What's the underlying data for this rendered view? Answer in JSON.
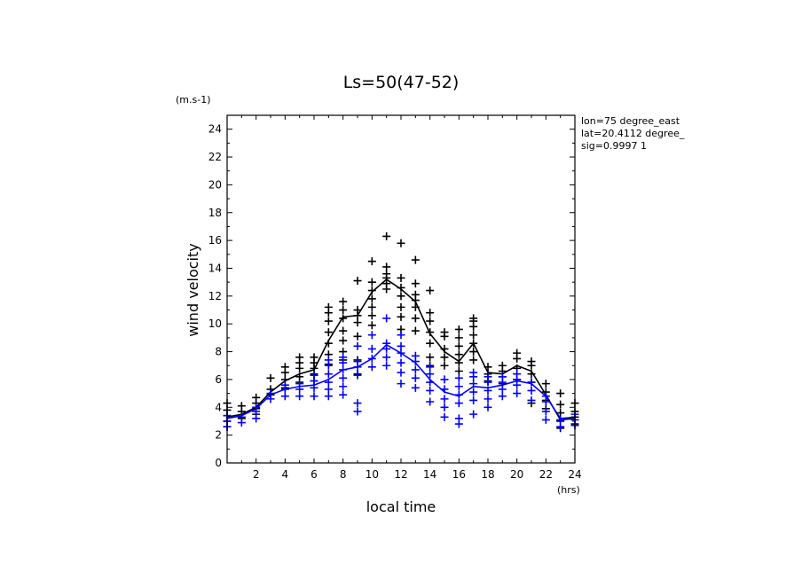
{
  "chart_data": {
    "type": "scatter",
    "title": "Ls=50(47-52)",
    "xlabel": "local time",
    "ylabel": "wind velocity",
    "x_unit": "(hrs)",
    "y_unit": "(m.s-1)",
    "info_lines": [
      "lon=75 degree_east",
      "lat=20.4112 degree_",
      "sig=0.9997 1"
    ],
    "xlim": [
      0,
      24
    ],
    "ylim": [
      0,
      25
    ],
    "x_ticks": [
      2,
      4,
      6,
      8,
      10,
      12,
      14,
      16,
      18,
      20,
      22,
      24
    ],
    "y_ticks": [
      0,
      2,
      4,
      6,
      8,
      10,
      12,
      14,
      16,
      18,
      20,
      22,
      24
    ],
    "colors": {
      "black_series": "#000000",
      "blue_series": "#0000ff"
    },
    "series": [
      {
        "color": "#000000",
        "mean_line": {
          "x": [
            0,
            1,
            2,
            3,
            4,
            5,
            6,
            7,
            8,
            9,
            10,
            11,
            12,
            13,
            14,
            15,
            16,
            17,
            18,
            19,
            20,
            21,
            22,
            23,
            24
          ],
          "y": [
            3.3,
            3.5,
            4.0,
            5.1,
            5.9,
            6.4,
            6.7,
            8.8,
            10.5,
            10.6,
            12.3,
            13.2,
            12.5,
            11.6,
            9.3,
            8.0,
            7.3,
            8.6,
            6.5,
            6.4,
            7.0,
            6.6,
            4.9,
            3.1,
            3.2
          ]
        },
        "points": [
          {
            "x": 0,
            "y": [
              2.6,
              3.0,
              3.4,
              3.8,
              4.3
            ]
          },
          {
            "x": 1,
            "y": [
              3.2,
              3.7,
              4.1
            ]
          },
          {
            "x": 2,
            "y": [
              3.5,
              3.9,
              4.3,
              4.7
            ]
          },
          {
            "x": 3,
            "y": [
              4.9,
              5.3,
              6.1
            ]
          },
          {
            "x": 4,
            "y": [
              5.4,
              6.0,
              6.5,
              6.9
            ]
          },
          {
            "x": 5,
            "y": [
              5.8,
              6.2,
              6.8,
              7.2,
              7.6
            ]
          },
          {
            "x": 6,
            "y": [
              5.9,
              6.4,
              6.8,
              7.2,
              7.6
            ]
          },
          {
            "x": 7,
            "y": [
              7.1,
              7.8,
              8.6,
              9.4,
              10.2,
              10.8,
              11.2
            ]
          },
          {
            "x": 8,
            "y": [
              7.4,
              8.0,
              8.8,
              9.5,
              10.4,
              11.0,
              11.6
            ]
          },
          {
            "x": 9,
            "y": [
              6.4,
              7.4,
              9.1,
              10.1,
              10.6,
              11.0,
              13.1
            ]
          },
          {
            "x": 10,
            "y": [
              9.9,
              10.6,
              11.2,
              11.8,
              12.4,
              13.0,
              14.5
            ]
          },
          {
            "x": 11,
            "y": [
              12.5,
              12.9,
              13.3,
              13.6,
              14.1,
              16.3
            ]
          },
          {
            "x": 12,
            "y": [
              9.6,
              10.5,
              11.2,
              12.0,
              12.6,
              13.3,
              15.8
            ]
          },
          {
            "x": 13,
            "y": [
              9.5,
              10.4,
              11.2,
              11.7,
              12.1,
              12.9,
              14.6
            ]
          },
          {
            "x": 14,
            "y": [
              7.0,
              7.6,
              8.6,
              9.4,
              10.2,
              10.8,
              12.4
            ]
          },
          {
            "x": 15,
            "y": [
              7.0,
              7.6,
              8.2,
              9.1,
              9.4
            ]
          },
          {
            "x": 16,
            "y": [
              6.6,
              7.2,
              7.8,
              8.4,
              9.0,
              9.6
            ]
          },
          {
            "x": 17,
            "y": [
              7.4,
              8.0,
              8.6,
              9.2,
              9.8,
              10.2,
              10.4
            ]
          },
          {
            "x": 18,
            "y": [
              5.9,
              6.4,
              6.9
            ]
          },
          {
            "x": 19,
            "y": [
              5.7,
              6.2,
              6.6,
              7.0
            ]
          },
          {
            "x": 20,
            "y": [
              6.0,
              6.8,
              7.5,
              7.9
            ]
          },
          {
            "x": 21,
            "y": [
              4.3,
              5.8,
              6.4,
              7.0,
              7.3
            ]
          },
          {
            "x": 22,
            "y": [
              3.9,
              4.5,
              5.1,
              5.7
            ]
          },
          {
            "x": 23,
            "y": [
              2.5,
              3.0,
              3.6,
              4.2,
              5.0
            ]
          },
          {
            "x": 24,
            "y": [
              2.8,
              3.3,
              3.7,
              4.3
            ]
          }
        ]
      },
      {
        "color": "#0000ff",
        "mean_line": {
          "x": [
            0,
            1,
            2,
            3,
            4,
            5,
            6,
            7,
            8,
            9,
            10,
            11,
            12,
            13,
            14,
            15,
            16,
            17,
            18,
            19,
            20,
            21,
            22,
            23,
            24
          ],
          "y": [
            3.2,
            3.4,
            3.9,
            4.9,
            5.3,
            5.5,
            5.6,
            6.0,
            6.7,
            6.9,
            7.5,
            8.5,
            7.9,
            7.2,
            6.0,
            5.1,
            4.8,
            5.5,
            5.4,
            5.6,
            5.9,
            5.7,
            4.8,
            3.2,
            3.3
          ]
        },
        "points": [
          {
            "x": 0,
            "y": [
              2.6,
              3.0,
              3.4
            ]
          },
          {
            "x": 1,
            "y": [
              2.9,
              3.3
            ]
          },
          {
            "x": 2,
            "y": [
              3.2,
              3.7,
              4.0
            ]
          },
          {
            "x": 3,
            "y": [
              4.6,
              5.0
            ]
          },
          {
            "x": 4,
            "y": [
              4.8,
              5.3,
              5.6
            ]
          },
          {
            "x": 5,
            "y": [
              4.8,
              5.3,
              5.7
            ]
          },
          {
            "x": 6,
            "y": [
              4.8,
              5.4,
              5.9,
              6.3
            ]
          },
          {
            "x": 7,
            "y": [
              4.8,
              5.3,
              5.8,
              6.4,
              7.0,
              7.4
            ]
          },
          {
            "x": 8,
            "y": [
              4.9,
              5.5,
              6.1,
              6.7,
              7.2,
              7.6
            ]
          },
          {
            "x": 9,
            "y": [
              3.7,
              4.3,
              6.3,
              6.9,
              7.3,
              8.4
            ]
          },
          {
            "x": 10,
            "y": [
              6.9,
              7.5,
              8.2,
              9.2
            ]
          },
          {
            "x": 11,
            "y": [
              7.0,
              7.6,
              8.2,
              8.6,
              10.4
            ]
          },
          {
            "x": 12,
            "y": [
              5.7,
              6.5,
              7.2,
              7.9,
              8.4,
              9.2
            ]
          },
          {
            "x": 13,
            "y": [
              5.4,
              6.1,
              6.7,
              7.3,
              7.7
            ]
          },
          {
            "x": 14,
            "y": [
              4.4,
              5.2,
              5.8,
              6.4,
              6.9
            ]
          },
          {
            "x": 15,
            "y": [
              3.3,
              4.0,
              4.6,
              5.3,
              6.0
            ]
          },
          {
            "x": 16,
            "y": [
              2.8,
              3.2,
              4.3,
              4.9,
              5.5,
              6.1
            ]
          },
          {
            "x": 17,
            "y": [
              3.5,
              4.5,
              5.1,
              5.7,
              6.2,
              6.5
            ]
          },
          {
            "x": 18,
            "y": [
              4.0,
              4.6,
              5.2,
              5.8,
              6.2
            ]
          },
          {
            "x": 19,
            "y": [
              4.8,
              5.3,
              5.8,
              6.2
            ]
          },
          {
            "x": 20,
            "y": [
              5.0,
              5.6,
              6.0,
              6.4
            ]
          },
          {
            "x": 21,
            "y": [
              4.5,
              5.2,
              5.8
            ]
          },
          {
            "x": 22,
            "y": [
              3.1,
              3.7,
              4.4,
              4.8
            ]
          },
          {
            "x": 23,
            "y": [
              2.6,
              3.1
            ]
          },
          {
            "x": 24,
            "y": [
              2.7,
              3.1,
              3.5
            ]
          }
        ]
      }
    ]
  }
}
